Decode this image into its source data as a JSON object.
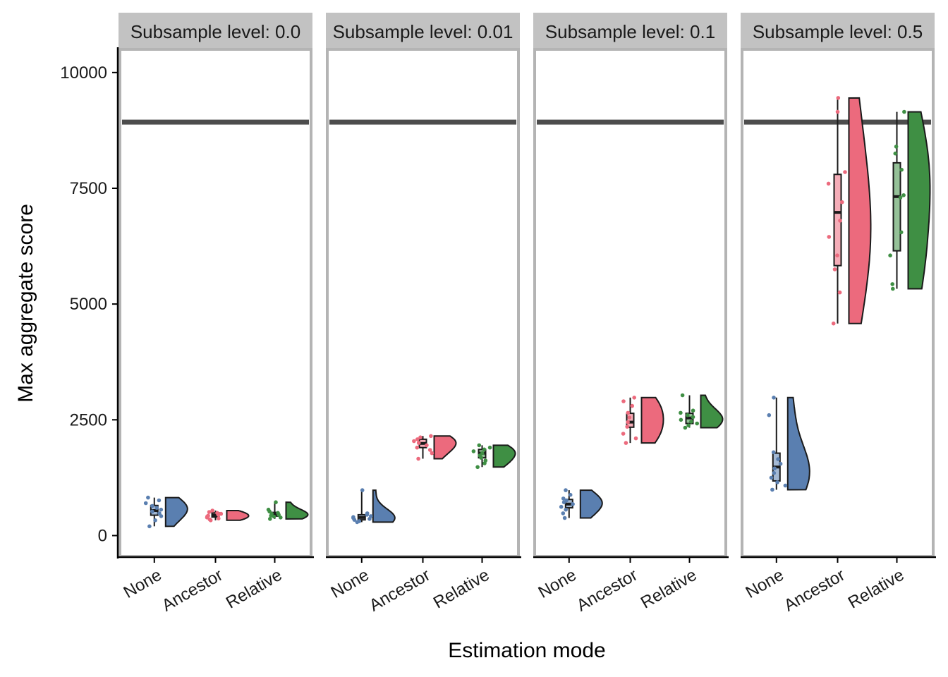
{
  "chart_data": {
    "type": "raincloud",
    "xlabel": "Estimation mode",
    "ylabel": "Max aggregate score",
    "ylim": [
      -450,
      10500
    ],
    "yticks": [
      0,
      2500,
      5000,
      7500,
      10000
    ],
    "reference_line": 8930,
    "categories": [
      "None",
      "Ancestor",
      "Relative"
    ],
    "colors": {
      "None": "#5a7fb0",
      "Ancestor": "#ec6a7d",
      "Relative": "#3f8f44"
    },
    "panels": [
      {
        "title": "Subsample level: 0.0",
        "groups": [
          {
            "category": "None",
            "points": [
              200,
              330,
              420,
              480,
              520,
              560,
              600,
              640,
              700,
              760,
              820
            ],
            "box": [
              440,
              540,
              650
            ],
            "whisker": [
              200,
              820
            ]
          },
          {
            "category": "Ancestor",
            "points": [
              330,
              350,
              370,
              390,
              410,
              430,
              450,
              470,
              490,
              510,
              540
            ],
            "box": [
              400,
              440,
              490
            ],
            "whisker": [
              330,
              540
            ]
          },
          {
            "category": "Relative",
            "points": [
              360,
              390,
              410,
              430,
              450,
              470,
              490,
              520,
              560,
              720
            ],
            "box": [
              420,
              460,
              500
            ],
            "whisker": [
              360,
              720
            ]
          }
        ]
      },
      {
        "title": "Subsample level: 0.01",
        "groups": [
          {
            "category": "None",
            "points": [
              290,
              310,
              340,
              360,
              380,
              400,
              420,
              450,
              480,
              980
            ],
            "box": [
              340,
              390,
              450
            ],
            "whisker": [
              290,
              980
            ]
          },
          {
            "category": "Ancestor",
            "points": [
              1660,
              1780,
              1850,
              1900,
              1950,
              2000,
              2040,
              2080,
              2120,
              2150
            ],
            "box": [
              1900,
              1990,
              2080
            ],
            "whisker": [
              1660,
              2150
            ]
          },
          {
            "category": "Relative",
            "points": [
              1480,
              1560,
              1620,
              1680,
              1730,
              1780,
              1820,
              1860,
              1900,
              1950
            ],
            "box": [
              1680,
              1780,
              1860
            ],
            "whisker": [
              1480,
              1950
            ]
          }
        ]
      },
      {
        "title": "Subsample level: 0.1",
        "groups": [
          {
            "category": "None",
            "points": [
              380,
              480,
              560,
              620,
              680,
              720,
              760,
              800,
              880,
              980
            ],
            "box": [
              600,
              680,
              780
            ],
            "whisker": [
              380,
              980
            ]
          },
          {
            "category": "Ancestor",
            "points": [
              2000,
              2100,
              2200,
              2350,
              2450,
              2550,
              2650,
              2800,
              2900,
              2980
            ],
            "box": [
              2340,
              2450,
              2640
            ],
            "whisker": [
              2000,
              2980
            ]
          },
          {
            "category": "Relative",
            "points": [
              2330,
              2380,
              2420,
              2460,
              2500,
              2560,
              2600,
              2650,
              2700,
              3030
            ],
            "box": [
              2420,
              2540,
              2640
            ],
            "whisker": [
              2330,
              3030
            ]
          }
        ]
      },
      {
        "title": "Subsample level: 0.5",
        "groups": [
          {
            "category": "None",
            "points": [
              990,
              1080,
              1150,
              1250,
              1350,
              1450,
              1550,
              1650,
              1800,
              2600,
              2980
            ],
            "box": [
              1180,
              1480,
              1780
            ],
            "whisker": [
              990,
              2980
            ]
          },
          {
            "category": "Ancestor",
            "points": [
              4580,
              5250,
              5750,
              6050,
              6450,
              6800,
              7200,
              7600,
              7850,
              9150,
              9450
            ],
            "box": [
              5830,
              6980,
              7800
            ],
            "whisker": [
              4580,
              9450
            ]
          },
          {
            "category": "Relative",
            "points": [
              5330,
              5430,
              6050,
              6550,
              7300,
              7350,
              7900,
              8250,
              8400,
              9150
            ],
            "box": [
              6150,
              7320,
              8050
            ],
            "whisker": [
              5330,
              9150
            ]
          }
        ]
      }
    ]
  }
}
